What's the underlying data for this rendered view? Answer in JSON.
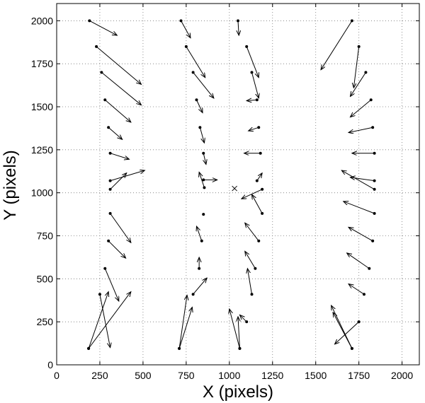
{
  "chart_data": {
    "type": "scatter",
    "subtype": "vector-field",
    "xlabel": "X  (pixels)",
    "ylabel": "Y  (pixels)",
    "xlim": [
      0,
      2100
    ],
    "ylim": [
      0,
      2100
    ],
    "x_ticks": [
      0,
      250,
      500,
      750,
      1000,
      1250,
      1500,
      1750,
      2000
    ],
    "y_ticks": [
      0,
      250,
      500,
      750,
      1000,
      1250,
      1500,
      1750,
      2000
    ],
    "grid": true,
    "grid_style": "dotted",
    "color": "#000000",
    "center_marker": {
      "x": 1030,
      "y": 1025,
      "symbol": "x"
    },
    "vectors": [
      {
        "x": 190,
        "y": 2000,
        "dx": 160,
        "dy": -85
      },
      {
        "x": 230,
        "y": 1850,
        "dx": 260,
        "dy": -220
      },
      {
        "x": 260,
        "y": 1700,
        "dx": 230,
        "dy": -190
      },
      {
        "x": 280,
        "y": 1540,
        "dx": 150,
        "dy": -130
      },
      {
        "x": 300,
        "y": 1380,
        "dx": 80,
        "dy": -70
      },
      {
        "x": 310,
        "y": 1230,
        "dx": 110,
        "dy": -35
      },
      {
        "x": 310,
        "y": 1070,
        "dx": 200,
        "dy": 60
      },
      {
        "x": 310,
        "y": 1020,
        "dx": 95,
        "dy": 95
      },
      {
        "x": 310,
        "y": 880,
        "dx": 120,
        "dy": -170
      },
      {
        "x": 300,
        "y": 720,
        "dx": 100,
        "dy": -100
      },
      {
        "x": 280,
        "y": 560,
        "dx": 80,
        "dy": -190
      },
      {
        "x": 250,
        "y": 410,
        "dx": 60,
        "dy": -310
      },
      {
        "x": 185,
        "y": 95,
        "dx": 115,
        "dy": 330
      },
      {
        "x": 185,
        "y": 95,
        "dx": 245,
        "dy": 330
      },
      {
        "x": 720,
        "y": 2000,
        "dx": 55,
        "dy": -100
      },
      {
        "x": 750,
        "y": 1850,
        "dx": 110,
        "dy": -180
      },
      {
        "x": 790,
        "y": 1700,
        "dx": 120,
        "dy": -150
      },
      {
        "x": 810,
        "y": 1540,
        "dx": 35,
        "dy": -75
      },
      {
        "x": 830,
        "y": 1380,
        "dx": 25,
        "dy": -90
      },
      {
        "x": 850,
        "y": 1230,
        "dx": 15,
        "dy": -65
      },
      {
        "x": 850,
        "y": 1075,
        "dx": 80,
        "dy": 0
      },
      {
        "x": 855,
        "y": 1030,
        "dx": -30,
        "dy": 90
      },
      {
        "x": 850,
        "y": 875,
        "dx": 0,
        "dy": 0
      },
      {
        "x": 840,
        "y": 720,
        "dx": -30,
        "dy": 85
      },
      {
        "x": 825,
        "y": 560,
        "dx": 0,
        "dy": 65
      },
      {
        "x": 790,
        "y": 410,
        "dx": 80,
        "dy": 95
      },
      {
        "x": 710,
        "y": 95,
        "dx": 45,
        "dy": 310
      },
      {
        "x": 710,
        "y": 95,
        "dx": 75,
        "dy": 240
      },
      {
        "x": 1050,
        "y": 2000,
        "dx": 5,
        "dy": -85
      },
      {
        "x": 1100,
        "y": 1850,
        "dx": 70,
        "dy": -180
      },
      {
        "x": 1130,
        "y": 1700,
        "dx": 40,
        "dy": -150
      },
      {
        "x": 1160,
        "y": 1540,
        "dx": -60,
        "dy": -5
      },
      {
        "x": 1170,
        "y": 1380,
        "dx": -60,
        "dy": -20
      },
      {
        "x": 1180,
        "y": 1230,
        "dx": -95,
        "dy": 0
      },
      {
        "x": 1190,
        "y": 1020,
        "dx": -120,
        "dy": -55
      },
      {
        "x": 1160,
        "y": 1070,
        "dx": 30,
        "dy": 45
      },
      {
        "x": 1190,
        "y": 880,
        "dx": -60,
        "dy": 110
      },
      {
        "x": 1170,
        "y": 720,
        "dx": -80,
        "dy": 105
      },
      {
        "x": 1150,
        "y": 560,
        "dx": -60,
        "dy": 100
      },
      {
        "x": 1130,
        "y": 410,
        "dx": -25,
        "dy": 150
      },
      {
        "x": 1100,
        "y": 250,
        "dx": -40,
        "dy": 40
      },
      {
        "x": 1060,
        "y": 95,
        "dx": -60,
        "dy": 230
      },
      {
        "x": 1060,
        "y": 95,
        "dx": -10,
        "dy": 185
      },
      {
        "x": 1710,
        "y": 2000,
        "dx": -180,
        "dy": -285
      },
      {
        "x": 1750,
        "y": 1850,
        "dx": -30,
        "dy": -240
      },
      {
        "x": 1790,
        "y": 1700,
        "dx": -90,
        "dy": -140
      },
      {
        "x": 1820,
        "y": 1540,
        "dx": -120,
        "dy": -100
      },
      {
        "x": 1830,
        "y": 1380,
        "dx": -140,
        "dy": -30
      },
      {
        "x": 1840,
        "y": 1230,
        "dx": -130,
        "dy": 0
      },
      {
        "x": 1840,
        "y": 1070,
        "dx": -140,
        "dy": 20
      },
      {
        "x": 1840,
        "y": 1020,
        "dx": -190,
        "dy": 110
      },
      {
        "x": 1840,
        "y": 880,
        "dx": -180,
        "dy": 70
      },
      {
        "x": 1830,
        "y": 720,
        "dx": -140,
        "dy": 80
      },
      {
        "x": 1810,
        "y": 560,
        "dx": -130,
        "dy": 90
      },
      {
        "x": 1780,
        "y": 410,
        "dx": -90,
        "dy": 60
      },
      {
        "x": 1750,
        "y": 250,
        "dx": -140,
        "dy": -130
      },
      {
        "x": 1710,
        "y": 95,
        "dx": -120,
        "dy": 250
      },
      {
        "x": 1710,
        "y": 95,
        "dx": -110,
        "dy": 210
      }
    ]
  }
}
